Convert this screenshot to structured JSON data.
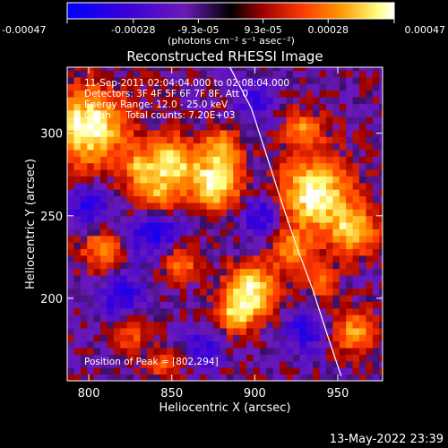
{
  "chart_data": {
    "type": "heatmap",
    "title": "Reconstructed RHESSI Image",
    "xlabel": "Heliocentric X (arcsec)",
    "ylabel": "Heliocentric Y (arcsec)",
    "xlim": [
      787,
      977
    ],
    "ylim": [
      150,
      340
    ],
    "x_ticks": [
      800,
      850,
      900,
      950
    ],
    "y_ticks": [
      200,
      250,
      300
    ],
    "colorbar": {
      "min": -0.00047,
      "max": 0.00047,
      "tick_values": [
        -0.00047,
        -0.00028,
        -9.3e-05,
        9.3e-05,
        0.00028,
        0.00047
      ],
      "tick_labels": [
        "-0.00047",
        "-0.00028",
        "-9.3e-05",
        "9.3e-05",
        "0.00028",
        "0.00047"
      ],
      "label": "(photons cm⁻² s⁻¹ asec⁻²)"
    },
    "annotations": [
      "11-Sep-2011 02:04:04.000 to 02:08:04.000",
      "Detectors: 3F 4F 5F 6F 7F 8F, Att 0",
      "Energy Range: 12.0 - 25.0 keV",
      "Clean     Total counts: 7.20E+03"
    ],
    "peak_label": "Position of Peak = [802,294]",
    "peak": [
      802,
      294
    ],
    "hotspots": [
      {
        "x": 800,
        "y": 304,
        "amp": 1.0,
        "sigma": 16
      },
      {
        "x": 850,
        "y": 284,
        "amp": 0.8,
        "sigma": 10
      },
      {
        "x": 840,
        "y": 262,
        "amp": 0.7,
        "sigma": 11
      },
      {
        "x": 876,
        "y": 270,
        "amp": 0.95,
        "sigma": 11
      },
      {
        "x": 880,
        "y": 292,
        "amp": 0.6,
        "sigma": 8
      },
      {
        "x": 936,
        "y": 263,
        "amp": 1.0,
        "sigma": 15
      },
      {
        "x": 960,
        "y": 240,
        "amp": 0.75,
        "sigma": 10
      },
      {
        "x": 922,
        "y": 230,
        "amp": 0.55,
        "sigma": 9
      },
      {
        "x": 930,
        "y": 302,
        "amp": 0.55,
        "sigma": 8
      },
      {
        "x": 898,
        "y": 205,
        "amp": 0.9,
        "sigma": 11
      },
      {
        "x": 888,
        "y": 190,
        "amp": 0.6,
        "sigma": 8
      },
      {
        "x": 808,
        "y": 230,
        "amp": 0.55,
        "sigma": 9
      },
      {
        "x": 855,
        "y": 222,
        "amp": 0.55,
        "sigma": 8
      },
      {
        "x": 960,
        "y": 180,
        "amp": 0.6,
        "sigma": 9
      },
      {
        "x": 940,
        "y": 210,
        "amp": 0.45,
        "sigma": 7
      },
      {
        "x": 825,
        "y": 180,
        "amp": 0.45,
        "sigma": 8
      },
      {
        "x": 845,
        "y": 160,
        "amp": 0.4,
        "sigma": 7
      },
      {
        "x": 830,
        "y": 280,
        "amp": 0.45,
        "sigma": 7
      }
    ],
    "coldspots": [
      {
        "x": 840,
        "y": 242,
        "amp": 0.6,
        "sigma": 12
      },
      {
        "x": 800,
        "y": 255,
        "amp": 0.5,
        "sigma": 9
      },
      {
        "x": 905,
        "y": 250,
        "amp": 0.5,
        "sigma": 10
      },
      {
        "x": 820,
        "y": 200,
        "amp": 0.5,
        "sigma": 10
      },
      {
        "x": 930,
        "y": 180,
        "amp": 0.45,
        "sigma": 9
      },
      {
        "x": 870,
        "y": 170,
        "amp": 0.4,
        "sigma": 8
      },
      {
        "x": 900,
        "y": 320,
        "amp": 0.35,
        "sigma": 9
      }
    ],
    "limb": [
      [
        885,
        340
      ],
      [
        898,
        315
      ],
      [
        906,
        290
      ],
      [
        915,
        262
      ],
      [
        925,
        232
      ],
      [
        935,
        205
      ],
      [
        943,
        180
      ],
      [
        952,
        153
      ]
    ]
  },
  "footer": {
    "date": "13-May-2022 23:39"
  },
  "colors": {
    "background": "#000000",
    "colormap_stops": [
      "#0000ff",
      "#3a00d8",
      "#6a1ab8",
      "#000000",
      "#a00000",
      "#ff3a00",
      "#ff9a00",
      "#ffff80",
      "#ffffff"
    ],
    "limb": "#ffffff"
  }
}
